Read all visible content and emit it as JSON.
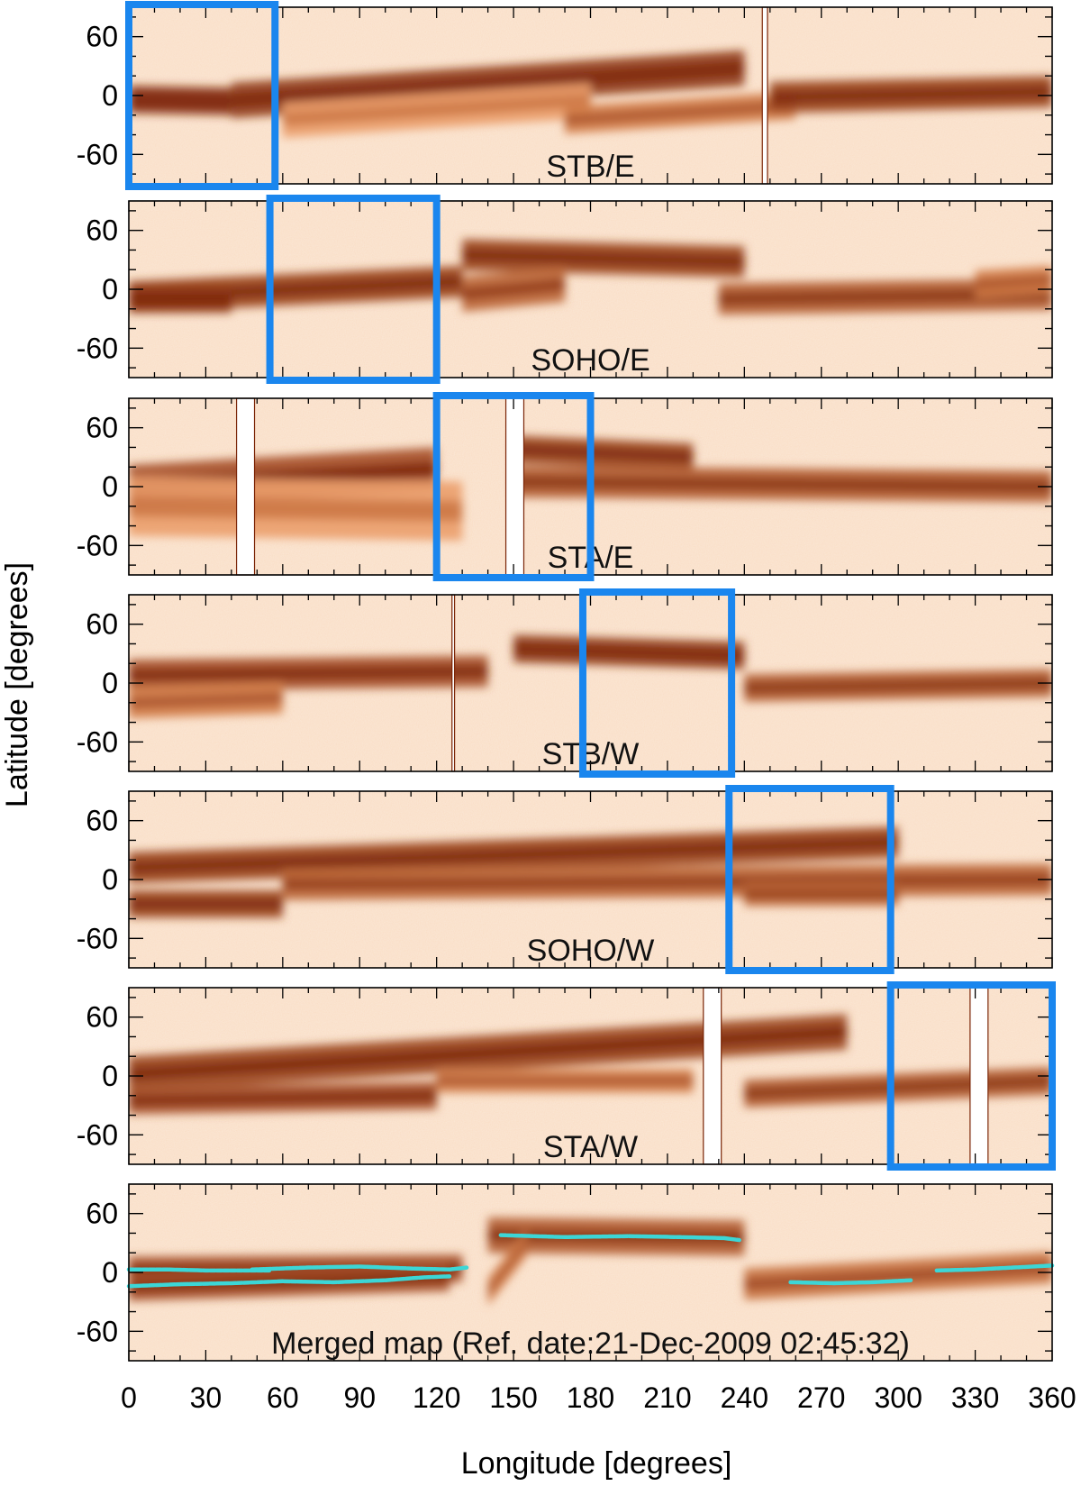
{
  "chart_data": {
    "type": "heatmap",
    "description_axes": {
      "xlabel": "Longitude [degrees]",
      "ylabel": "Latitude [degrees]"
    },
    "xlim": [
      0,
      360
    ],
    "ylim": [
      -90,
      90
    ],
    "x_ticks": [
      "0",
      "30",
      "60",
      "90",
      "120",
      "150",
      "180",
      "210",
      "240",
      "270",
      "300",
      "330",
      "360"
    ],
    "y_ticks": [
      "60",
      "0",
      "-60"
    ],
    "colormap": {
      "low": "#ffffff",
      "mid": "#e9935a",
      "high": "#7a2406"
    },
    "highlight_color": "#1a86ee",
    "trace_color": "#3cd6d6",
    "panels": [
      {
        "label": "STB/E",
        "highlight_box": {
          "lon": [
            0,
            57
          ]
        },
        "data_gaps": [
          [
            247,
            249
          ]
        ],
        "features": [
          {
            "lon": [
              0,
              40
            ],
            "lat": [
              -4,
              -6
            ],
            "intensity": 0.95,
            "width": 14
          },
          {
            "lon": [
              40,
              240
            ],
            "lat": [
              -5,
              28
            ],
            "intensity": 0.9,
            "width": 18
          },
          {
            "lon": [
              60,
              180
            ],
            "lat": [
              -25,
              -5
            ],
            "intensity": 0.45,
            "width": 18
          },
          {
            "lon": [
              170,
              260
            ],
            "lat": [
              -25,
              -10
            ],
            "intensity": 0.6,
            "width": 14
          },
          {
            "lon": [
              250,
              360
            ],
            "lat": [
              -2,
              4
            ],
            "intensity": 0.85,
            "width": 16
          }
        ]
      },
      {
        "label": "SOHO/E",
        "highlight_box": {
          "lon": [
            55,
            120
          ]
        },
        "data_gaps": [],
        "features": [
          {
            "lon": [
              0,
              130
            ],
            "lat": [
              -8,
              8
            ],
            "intensity": 0.85,
            "width": 16
          },
          {
            "lon": [
              0,
              40
            ],
            "lat": [
              -10,
              -10
            ],
            "intensity": 0.9,
            "width": 14
          },
          {
            "lon": [
              130,
              240
            ],
            "lat": [
              35,
              28
            ],
            "intensity": 0.85,
            "width": 16
          },
          {
            "lon": [
              130,
              170
            ],
            "lat": [
              -5,
              5
            ],
            "intensity": 0.7,
            "width": 18
          },
          {
            "lon": [
              230,
              360
            ],
            "lat": [
              -10,
              -5
            ],
            "intensity": 0.75,
            "width": 16
          },
          {
            "lon": [
              330,
              360
            ],
            "lat": [
              5,
              10
            ],
            "intensity": 0.6,
            "width": 14
          }
        ]
      },
      {
        "label": "STA/E",
        "highlight_box": {
          "lon": [
            120,
            180
          ]
        },
        "data_gaps": [
          [
            42,
            49
          ],
          [
            147,
            154
          ]
        ],
        "features": [
          {
            "lon": [
              0,
              120
            ],
            "lat": [
              0,
              18
            ],
            "intensity": 0.8,
            "width": 22
          },
          {
            "lon": [
              0,
              130
            ],
            "lat": [
              -20,
              -25
            ],
            "intensity": 0.45,
            "width": 30
          },
          {
            "lon": [
              150,
              220
            ],
            "lat": [
              38,
              30
            ],
            "intensity": 0.85,
            "width": 14
          },
          {
            "lon": [
              150,
              360
            ],
            "lat": [
              5,
              0
            ],
            "intensity": 0.75,
            "width": 16
          }
        ]
      },
      {
        "label": "STB/W",
        "highlight_box": {
          "lon": [
            177,
            235
          ]
        },
        "data_gaps": [
          [
            126,
            127
          ]
        ],
        "features": [
          {
            "lon": [
              0,
              140
            ],
            "lat": [
              8,
              12
            ],
            "intensity": 0.8,
            "width": 16
          },
          {
            "lon": [
              0,
              60
            ],
            "lat": [
              -20,
              -15
            ],
            "intensity": 0.6,
            "width": 16
          },
          {
            "lon": [
              150,
              240
            ],
            "lat": [
              35,
              28
            ],
            "intensity": 0.9,
            "width": 14
          },
          {
            "lon": [
              240,
              360
            ],
            "lat": [
              -5,
              0
            ],
            "intensity": 0.75,
            "width": 14
          }
        ]
      },
      {
        "label": "SOHO/W",
        "highlight_box": {
          "lon": [
            234,
            297
          ]
        },
        "data_gaps": [],
        "features": [
          {
            "lon": [
              0,
              300
            ],
            "lat": [
              12,
              38
            ],
            "intensity": 0.85,
            "width": 16
          },
          {
            "lon": [
              0,
              60
            ],
            "lat": [
              -25,
              -25
            ],
            "intensity": 0.85,
            "width": 14
          },
          {
            "lon": [
              60,
              360
            ],
            "lat": [
              -5,
              0
            ],
            "intensity": 0.7,
            "width": 16
          },
          {
            "lon": [
              240,
              300
            ],
            "lat": [
              -15,
              -15
            ],
            "intensity": 0.7,
            "width": 12
          }
        ]
      },
      {
        "label": "STA/W",
        "highlight_box": {
          "lon": [
            297,
            360
          ]
        },
        "data_gaps": [
          [
            224,
            231
          ],
          [
            328,
            335
          ]
        ],
        "features": [
          {
            "lon": [
              0,
              280
            ],
            "lat": [
              2,
              45
            ],
            "intensity": 0.85,
            "width": 18
          },
          {
            "lon": [
              0,
              120
            ],
            "lat": [
              -25,
              -20
            ],
            "intensity": 0.8,
            "width": 14
          },
          {
            "lon": [
              120,
              220
            ],
            "lat": [
              -5,
              -5
            ],
            "intensity": 0.6,
            "width": 12
          },
          {
            "lon": [
              240,
              360
            ],
            "lat": [
              -18,
              -5
            ],
            "intensity": 0.75,
            "width": 14
          }
        ]
      },
      {
        "label": "Merged map (Ref. date:21-Dec-2009 02:45:32)",
        "highlight_box": null,
        "data_gaps": [],
        "features": [
          {
            "lon": [
              0,
              130
            ],
            "lat": [
              2,
              4
            ],
            "intensity": 0.8,
            "width": 14
          },
          {
            "lon": [
              0,
              125
            ],
            "lat": [
              -15,
              -5
            ],
            "intensity": 0.8,
            "width": 14
          },
          {
            "lon": [
              140,
              240
            ],
            "lat": [
              38,
              35
            ],
            "intensity": 0.75,
            "width": 18
          },
          {
            "lon": [
              140,
              155
            ],
            "lat": [
              -20,
              30
            ],
            "intensity": 0.6,
            "width": 14
          },
          {
            "lon": [
              240,
              360
            ],
            "lat": [
              -12,
              5
            ],
            "intensity": 0.65,
            "width": 16
          }
        ],
        "traces": [
          {
            "points": [
              [
                0,
                3
              ],
              [
                15,
                3
              ],
              [
                30,
                2
              ],
              [
                45,
                2
              ],
              [
                55,
                2
              ]
            ]
          },
          {
            "points": [
              [
                48,
                3
              ],
              [
                70,
                5
              ],
              [
                90,
                6
              ],
              [
                110,
                4
              ],
              [
                125,
                3
              ],
              [
                132,
                5
              ]
            ]
          },
          {
            "points": [
              [
                0,
                -14
              ],
              [
                20,
                -12
              ],
              [
                40,
                -11
              ],
              [
                60,
                -9
              ],
              [
                80,
                -10
              ],
              [
                100,
                -8
              ],
              [
                115,
                -5
              ],
              [
                125,
                -4
              ]
            ]
          },
          {
            "points": [
              [
                145,
                38
              ],
              [
                170,
                36
              ],
              [
                195,
                37
              ],
              [
                215,
                36
              ],
              [
                232,
                35
              ],
              [
                238,
                33
              ]
            ]
          },
          {
            "points": [
              [
                258,
                -10
              ],
              [
                275,
                -11
              ],
              [
                290,
                -10
              ],
              [
                305,
                -8
              ]
            ]
          },
          {
            "points": [
              [
                315,
                2
              ],
              [
                330,
                3
              ],
              [
                345,
                5
              ],
              [
                360,
                7
              ]
            ]
          }
        ]
      }
    ]
  }
}
